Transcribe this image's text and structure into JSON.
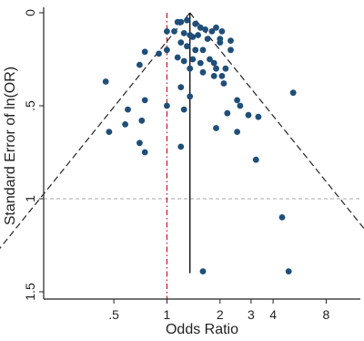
{
  "chart_data": {
    "type": "scatter",
    "title": "",
    "xlabel": "Odds Ratio",
    "ylabel": "Standard Error of ln(OR)",
    "x_scale": "log",
    "xlim": [
      0.2,
      12.5
    ],
    "ylim": [
      1.55,
      0
    ],
    "y_reversed": true,
    "x_ticks": [
      {
        "value": 0.5,
        "label": ".5"
      },
      {
        "value": 1,
        "label": "1"
      },
      {
        "value": 2,
        "label": "2"
      },
      {
        "value": 3,
        "label": "3"
      },
      {
        "value": 4,
        "label": "4"
      },
      {
        "value": 8,
        "label": "8"
      }
    ],
    "y_ticks": [
      {
        "value": 0,
        "label": "0"
      },
      {
        "value": 0.5,
        "label": ".5"
      },
      {
        "value": 1,
        "label": "1"
      },
      {
        "value": 1.5,
        "label": "1.5"
      }
    ],
    "pooled_or": 1.35,
    "null_or": 1,
    "reference_se": 1,
    "funnel_max_se": 1.4,
    "colors": {
      "points": "#1f4e79",
      "null_line": "#d0021b",
      "reference_line": "#aaaaaa",
      "funnel": "#222222",
      "pooled_line": "#111111"
    },
    "points": [
      {
        "or": 1.15,
        "se": 0.05
      },
      {
        "or": 1.2,
        "se": 0.05
      },
      {
        "or": 1.3,
        "se": 0.04
      },
      {
        "or": 1.45,
        "se": 0.06
      },
      {
        "or": 1.55,
        "se": 0.08
      },
      {
        "or": 1.65,
        "se": 0.09
      },
      {
        "or": 1.8,
        "se": 0.1
      },
      {
        "or": 1.9,
        "se": 0.08
      },
      {
        "or": 2.05,
        "se": 0.1
      },
      {
        "or": 1.0,
        "se": 0.1
      },
      {
        "or": 1.1,
        "se": 0.1
      },
      {
        "or": 1.25,
        "se": 0.11
      },
      {
        "or": 1.35,
        "se": 0.12
      },
      {
        "or": 1.4,
        "se": 0.13
      },
      {
        "or": 1.5,
        "se": 0.12
      },
      {
        "or": 1.7,
        "se": 0.14
      },
      {
        "or": 2.0,
        "se": 0.14
      },
      {
        "or": 2.3,
        "se": 0.15
      },
      {
        "or": 2.0,
        "se": 0.16
      },
      {
        "or": 1.2,
        "se": 0.16
      },
      {
        "or": 1.3,
        "se": 0.18
      },
      {
        "or": 1.0,
        "se": 0.2
      },
      {
        "or": 1.45,
        "se": 0.2
      },
      {
        "or": 1.6,
        "se": 0.2
      },
      {
        "or": 2.3,
        "se": 0.2
      },
      {
        "or": 0.75,
        "se": 0.21
      },
      {
        "or": 1.15,
        "se": 0.24
      },
      {
        "or": 1.25,
        "se": 0.26
      },
      {
        "or": 1.4,
        "se": 0.25
      },
      {
        "or": 1.55,
        "se": 0.27
      },
      {
        "or": 1.75,
        "se": 0.25
      },
      {
        "or": 1.85,
        "se": 0.27
      },
      {
        "or": 1.9,
        "se": 0.3
      },
      {
        "or": 2.15,
        "se": 0.3
      },
      {
        "or": 0.9,
        "se": 0.22
      },
      {
        "or": 0.7,
        "se": 0.28
      },
      {
        "or": 1.35,
        "se": 0.3
      },
      {
        "or": 1.6,
        "se": 0.32
      },
      {
        "or": 1.85,
        "se": 0.34
      },
      {
        "or": 2.05,
        "se": 0.34
      },
      {
        "or": 2.1,
        "se": 0.38
      },
      {
        "or": 1.2,
        "se": 0.4
      },
      {
        "or": 1.35,
        "se": 0.45
      },
      {
        "or": 1.0,
        "se": 0.5
      },
      {
        "or": 1.25,
        "se": 0.52
      },
      {
        "or": 2.5,
        "se": 0.47
      },
      {
        "or": 2.6,
        "se": 0.5
      },
      {
        "or": 2.2,
        "se": 0.54
      },
      {
        "or": 2.9,
        "se": 0.55
      },
      {
        "or": 3.3,
        "se": 0.56
      },
      {
        "or": 0.45,
        "se": 0.37
      },
      {
        "or": 0.75,
        "se": 0.47
      },
      {
        "or": 0.6,
        "se": 0.52
      },
      {
        "or": 0.72,
        "se": 0.58
      },
      {
        "or": 0.58,
        "se": 0.6
      },
      {
        "or": 0.47,
        "se": 0.64
      },
      {
        "or": 1.9,
        "se": 0.62
      },
      {
        "or": 2.5,
        "se": 0.64
      },
      {
        "or": 0.7,
        "se": 0.7
      },
      {
        "or": 0.75,
        "se": 0.75
      },
      {
        "or": 1.2,
        "se": 0.72
      },
      {
        "or": 3.2,
        "se": 0.79
      },
      {
        "or": 5.2,
        "se": 0.43
      },
      {
        "or": 4.5,
        "se": 1.1
      },
      {
        "or": 1.6,
        "se": 1.39
      },
      {
        "or": 4.9,
        "se": 1.39
      }
    ]
  }
}
